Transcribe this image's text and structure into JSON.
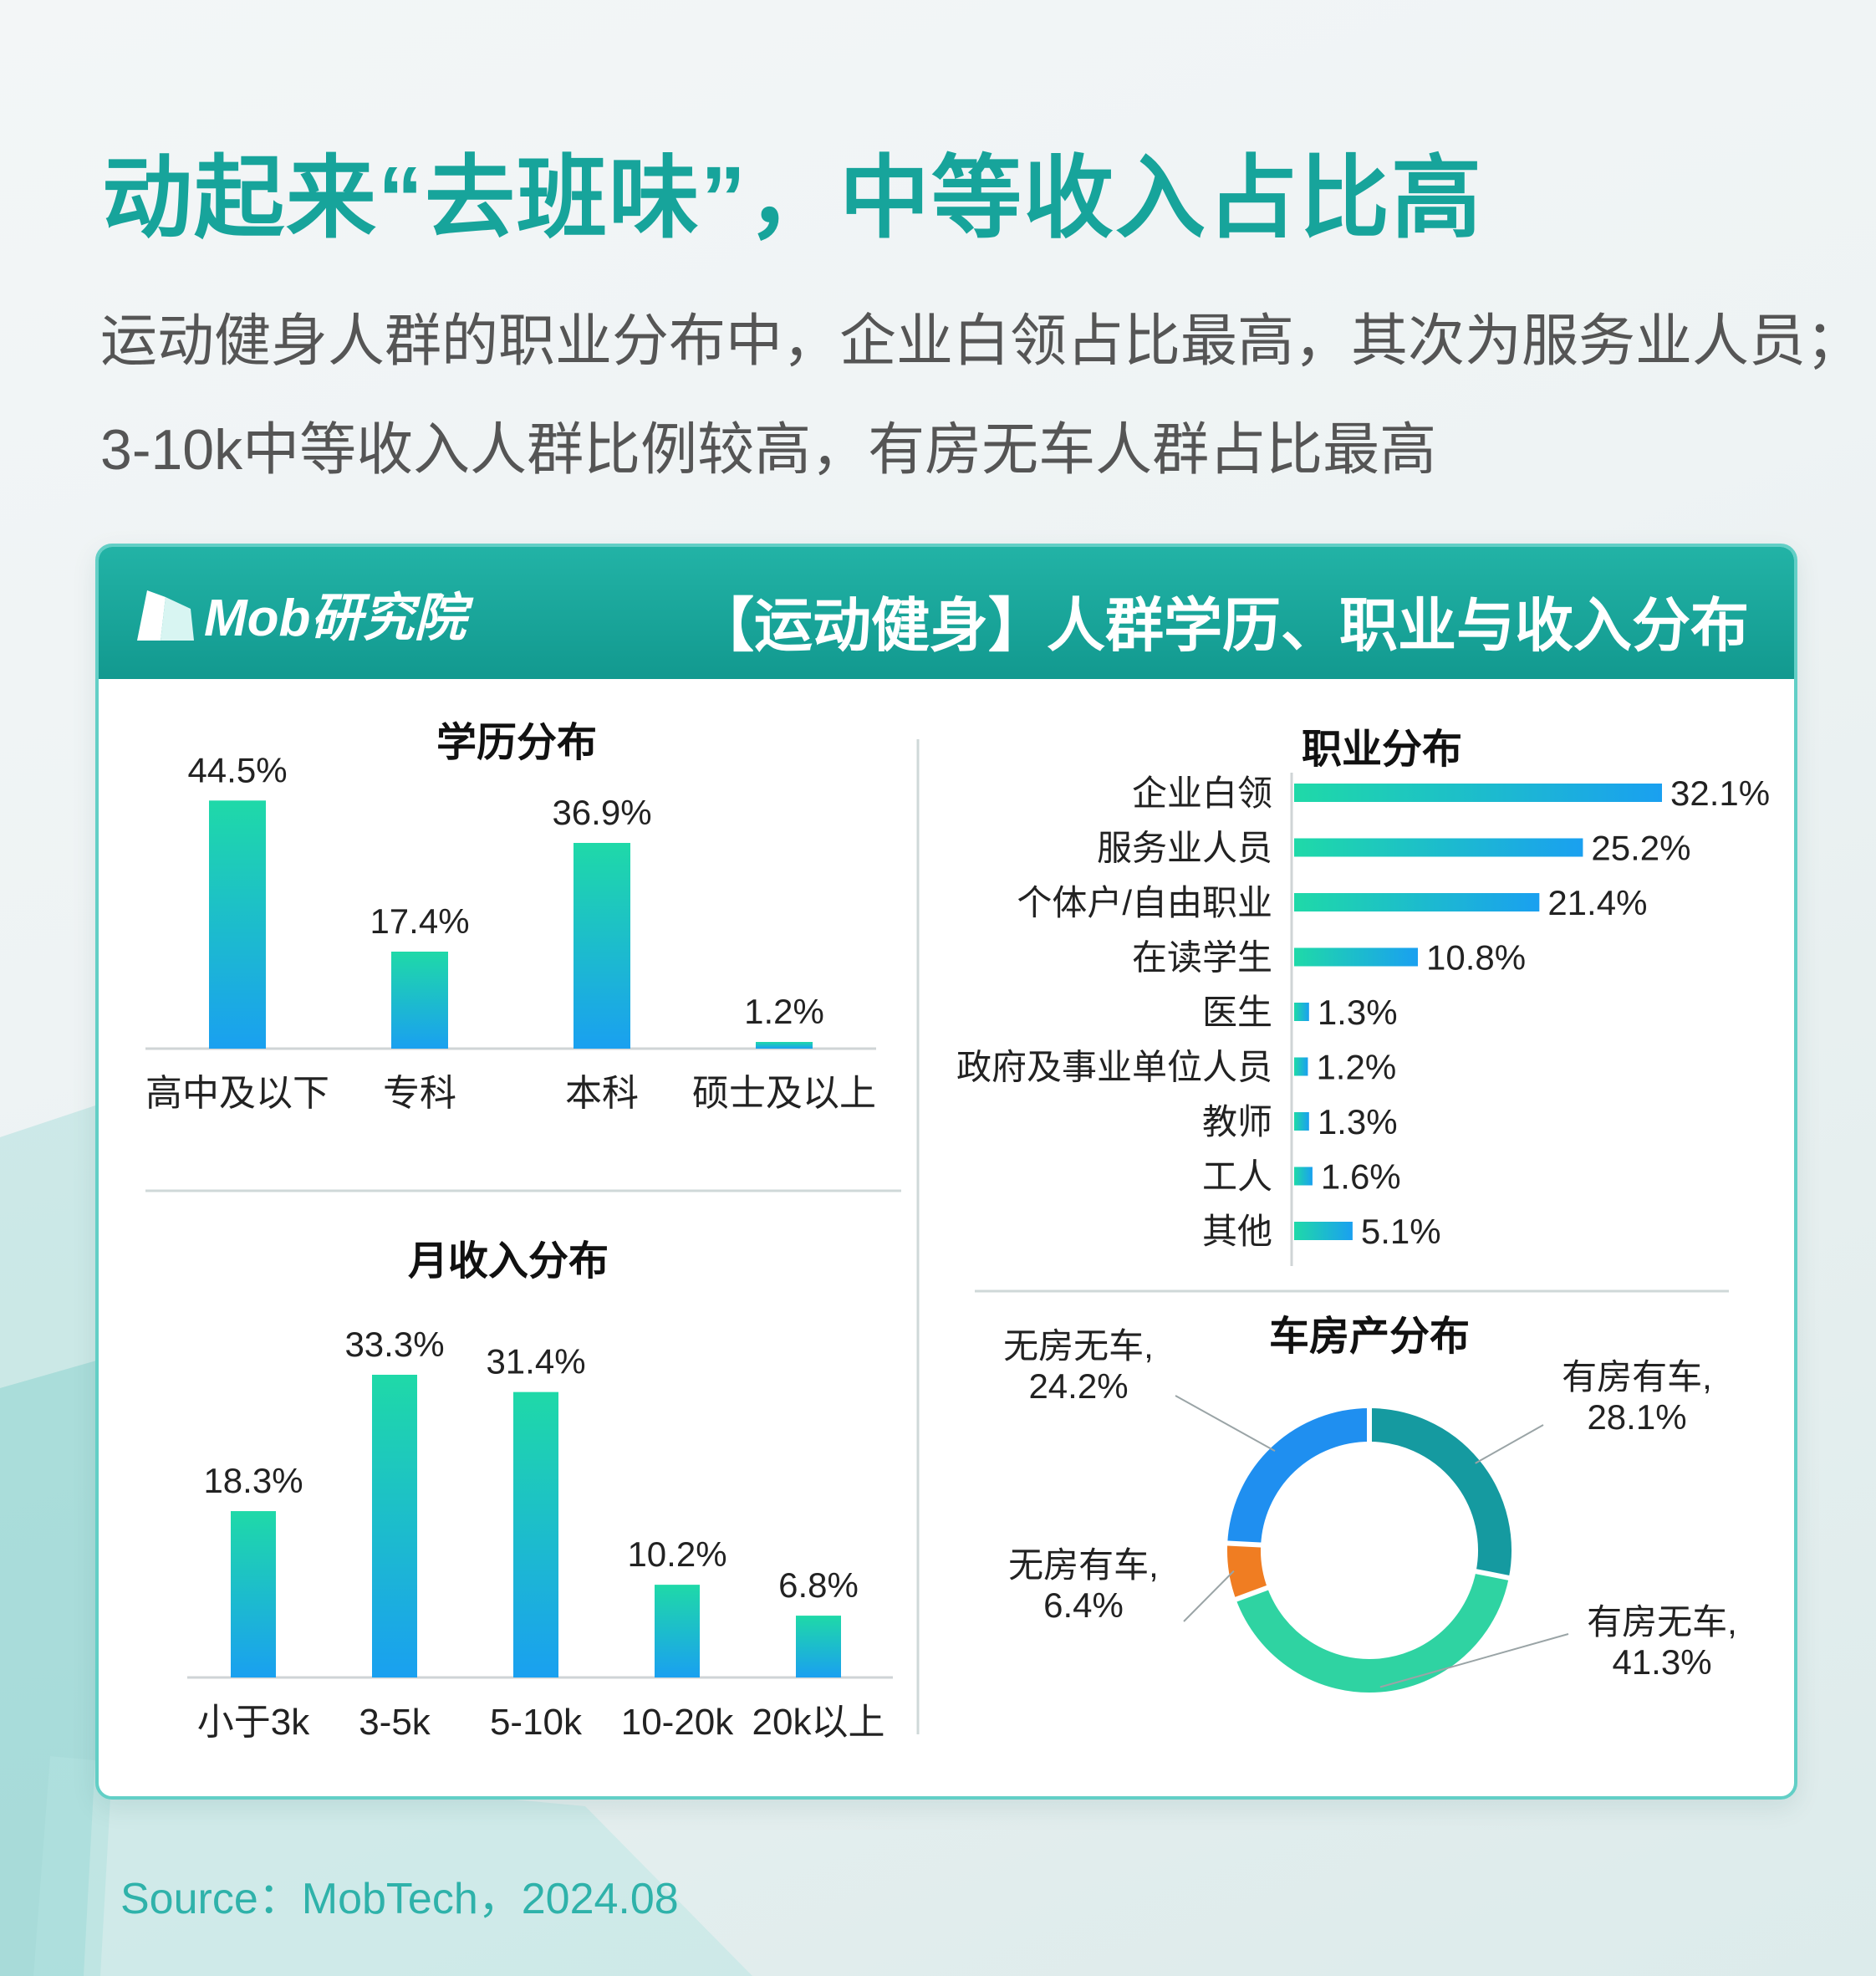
{
  "headline": "动起来“去班味”，中等收入占比高",
  "subtitle_line1": "运动健身人群的职业分布中，企业白领占比最高，其次为服务业人员；",
  "subtitle_line2": "3-10k中等收入人群比例较高，有房无车人群占比最高",
  "panel": {
    "logo_text": "Mob研究院",
    "title": "【运动健身】人群学历、职业与收入分布"
  },
  "source": "Source：MobTech，2024.08",
  "colors": {
    "bar_top": "#1fd9a8",
    "bar_bottom": "#1aa0f0",
    "donut": [
      "#159aa0",
      "#2fd3a2",
      "#f07d22",
      "#1f8ff0"
    ]
  },
  "chart_data": [
    {
      "type": "bar",
      "title": "学历分布",
      "categories": [
        "高中及以下",
        "专科",
        "本科",
        "硕士及以上"
      ],
      "values": [
        44.5,
        17.4,
        36.9,
        1.2
      ],
      "labels": [
        "44.5%",
        "17.4%",
        "36.9%",
        "1.2%"
      ],
      "ylim": [
        0,
        45
      ]
    },
    {
      "type": "bar",
      "orientation": "horizontal",
      "title": "职业分布",
      "categories": [
        "企业白领",
        "服务业人员",
        "个体户/自由职业",
        "在读学生",
        "医生",
        "政府及事业单位人员",
        "教师",
        "工人",
        "其他"
      ],
      "values": [
        32.1,
        25.2,
        21.4,
        10.8,
        1.3,
        1.2,
        1.3,
        1.6,
        5.1
      ],
      "labels": [
        "32.1%",
        "25.2%",
        "21.4%",
        "10.8%",
        "1.3%",
        "1.2%",
        "1.3%",
        "1.6%",
        "5.1%"
      ],
      "xlim": [
        0,
        32.1
      ]
    },
    {
      "type": "bar",
      "title": "月收入分布",
      "categories": [
        "小于3k",
        "3-5k",
        "5-10k",
        "10-20k",
        "20k以上"
      ],
      "values": [
        18.3,
        33.3,
        31.4,
        10.2,
        6.8
      ],
      "labels": [
        "18.3%",
        "33.3%",
        "31.4%",
        "10.2%",
        "6.8%"
      ],
      "ylim": [
        0,
        33.3
      ]
    },
    {
      "type": "pie",
      "style": "donut",
      "title": "车房产分布",
      "categories": [
        "有房有车",
        "有房无车",
        "无房有车",
        "无房无车"
      ],
      "values": [
        28.1,
        41.3,
        6.4,
        24.2
      ],
      "labels": [
        [
          "有房有车,",
          "28.1%"
        ],
        [
          "有房无车,",
          "41.3%"
        ],
        [
          "无房有车,",
          "6.4%"
        ],
        [
          "无房无车,",
          "24.2%"
        ]
      ]
    }
  ]
}
